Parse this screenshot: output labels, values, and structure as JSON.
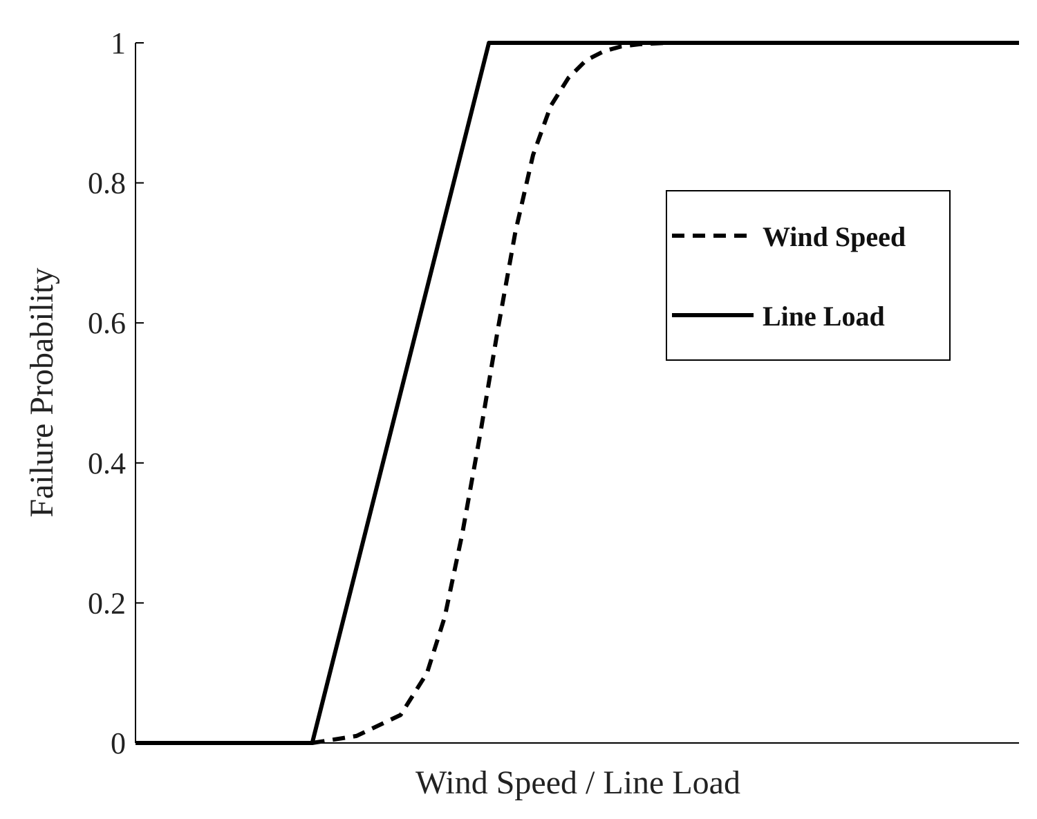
{
  "chart_data": {
    "type": "line",
    "xlabel": "Wind Speed / Line Load",
    "ylabel": "Failure Probability",
    "xlim": [
      0,
      1
    ],
    "ylim": [
      0,
      1
    ],
    "yticks": [
      "0",
      "0.2",
      "0.4",
      "0.6",
      "0.8",
      "1"
    ],
    "xticks": [],
    "grid": false,
    "legend": {
      "position": "right-upper",
      "entries": [
        "Wind Speed",
        "Line Load"
      ]
    },
    "series": [
      {
        "name": "Wind Speed",
        "style": "dashed",
        "color": "#000000",
        "x": [
          0.2,
          0.25,
          0.3,
          0.33,
          0.35,
          0.37,
          0.39,
          0.41,
          0.43,
          0.45,
          0.47,
          0.49,
          0.51,
          0.53,
          0.55,
          0.57,
          0.6,
          0.63,
          0.66,
          0.7,
          0.75,
          0.8,
          0.9,
          1.0
        ],
        "y": [
          0.0,
          0.01,
          0.04,
          0.1,
          0.18,
          0.3,
          0.44,
          0.59,
          0.73,
          0.84,
          0.91,
          0.95,
          0.975,
          0.988,
          0.995,
          0.998,
          1.0,
          1.0,
          1.0,
          1.0,
          1.0,
          1.0,
          1.0,
          1.0
        ]
      },
      {
        "name": "Line Load",
        "style": "solid",
        "color": "#000000",
        "x": [
          0.0,
          0.2,
          0.4,
          1.0
        ],
        "y": [
          0.0,
          0.0,
          1.0,
          1.0
        ]
      }
    ]
  }
}
